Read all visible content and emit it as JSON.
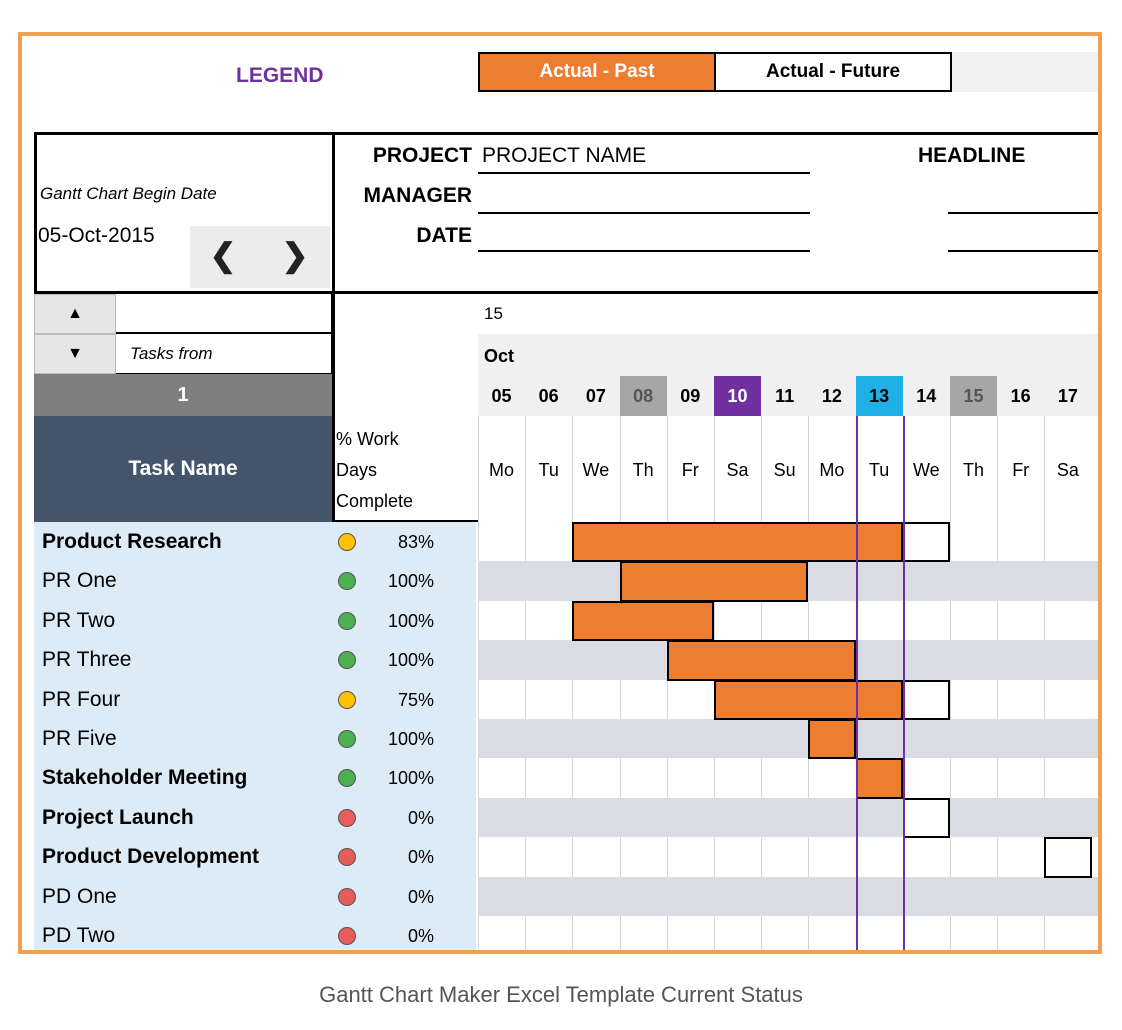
{
  "colors": {
    "accent_orange": "#ed7d31",
    "frame_orange": "#f0a050",
    "legend_purple": "#7030a0",
    "header_navy": "#44546a",
    "today_blue": "#1fb0e6",
    "weekend_gray": "#a6a6a6",
    "task_bg": "#ddebf7",
    "status_yellow": "#ffc000",
    "status_green": "#4caf50",
    "status_red": "#e85c5c"
  },
  "legend": {
    "title": "LEGEND",
    "past_label": "Actual - Past",
    "future_label": "Actual - Future"
  },
  "begin": {
    "label": "Gantt Chart Begin Date",
    "date": "05-Oct-2015",
    "prev": "❮",
    "next": "❯"
  },
  "project": {
    "project_label": "PROJECT",
    "project_name": "PROJECT NAME",
    "manager_label": "MANAGER",
    "date_label": "DATE",
    "headline_label": "HEADLINE"
  },
  "scroll": {
    "up": "▲",
    "down": "▼",
    "tasks_from": "Tasks from",
    "start_number": "1"
  },
  "columns": {
    "task_name": "Task Name",
    "pct_line1": "% Work",
    "pct_line2": "Days",
    "pct_line3": "Complete"
  },
  "timeline": {
    "year": "15",
    "month": "Oct",
    "days": [
      {
        "num": "05",
        "name": "Mo",
        "hl": ""
      },
      {
        "num": "06",
        "name": "Tu",
        "hl": ""
      },
      {
        "num": "07",
        "name": "We",
        "hl": ""
      },
      {
        "num": "08",
        "name": "Th",
        "hl": "gray"
      },
      {
        "num": "09",
        "name": "Fr",
        "hl": ""
      },
      {
        "num": "10",
        "name": "Sa",
        "hl": "purple"
      },
      {
        "num": "11",
        "name": "Su",
        "hl": ""
      },
      {
        "num": "12",
        "name": "Mo",
        "hl": ""
      },
      {
        "num": "13",
        "name": "Tu",
        "hl": "blue"
      },
      {
        "num": "14",
        "name": "We",
        "hl": ""
      },
      {
        "num": "15",
        "name": "Th",
        "hl": "gray"
      },
      {
        "num": "16",
        "name": "Fr",
        "hl": ""
      },
      {
        "num": "17",
        "name": "Sa",
        "hl": ""
      }
    ],
    "today_index": 8
  },
  "tasks": [
    {
      "name": "Product Research",
      "bold": true,
      "status": "yellow",
      "pct": "83%",
      "past": [
        2,
        8
      ],
      "future": [
        9,
        9
      ]
    },
    {
      "name": "PR One",
      "bold": false,
      "status": "green",
      "pct": "100%",
      "past": [
        3,
        6
      ],
      "future": null
    },
    {
      "name": "PR Two",
      "bold": false,
      "status": "green",
      "pct": "100%",
      "past": [
        2,
        4
      ],
      "future": null
    },
    {
      "name": "PR Three",
      "bold": false,
      "status": "green",
      "pct": "100%",
      "past": [
        4,
        7
      ],
      "future": null
    },
    {
      "name": "PR Four",
      "bold": false,
      "status": "yellow",
      "pct": "75%",
      "past": [
        5,
        8
      ],
      "future": [
        9,
        9
      ]
    },
    {
      "name": "PR Five",
      "bold": false,
      "status": "green",
      "pct": "100%",
      "past": [
        7,
        7
      ],
      "future": null
    },
    {
      "name": "Stakeholder Meeting",
      "bold": true,
      "status": "green",
      "pct": "100%",
      "past": [
        8,
        8
      ],
      "future": null
    },
    {
      "name": "Project Launch",
      "bold": true,
      "status": "red",
      "pct": "0%",
      "past": null,
      "future": [
        9,
        9
      ]
    },
    {
      "name": "Product Development",
      "bold": true,
      "status": "red",
      "pct": "0%",
      "past": null,
      "future": [
        12,
        12
      ]
    },
    {
      "name": "PD One",
      "bold": false,
      "status": "red",
      "pct": "0%",
      "past": null,
      "future": null
    },
    {
      "name": "PD Two",
      "bold": false,
      "status": "red",
      "pct": "0%",
      "past": null,
      "future": null
    }
  ],
  "caption": "Gantt Chart Maker Excel Template Current Status"
}
